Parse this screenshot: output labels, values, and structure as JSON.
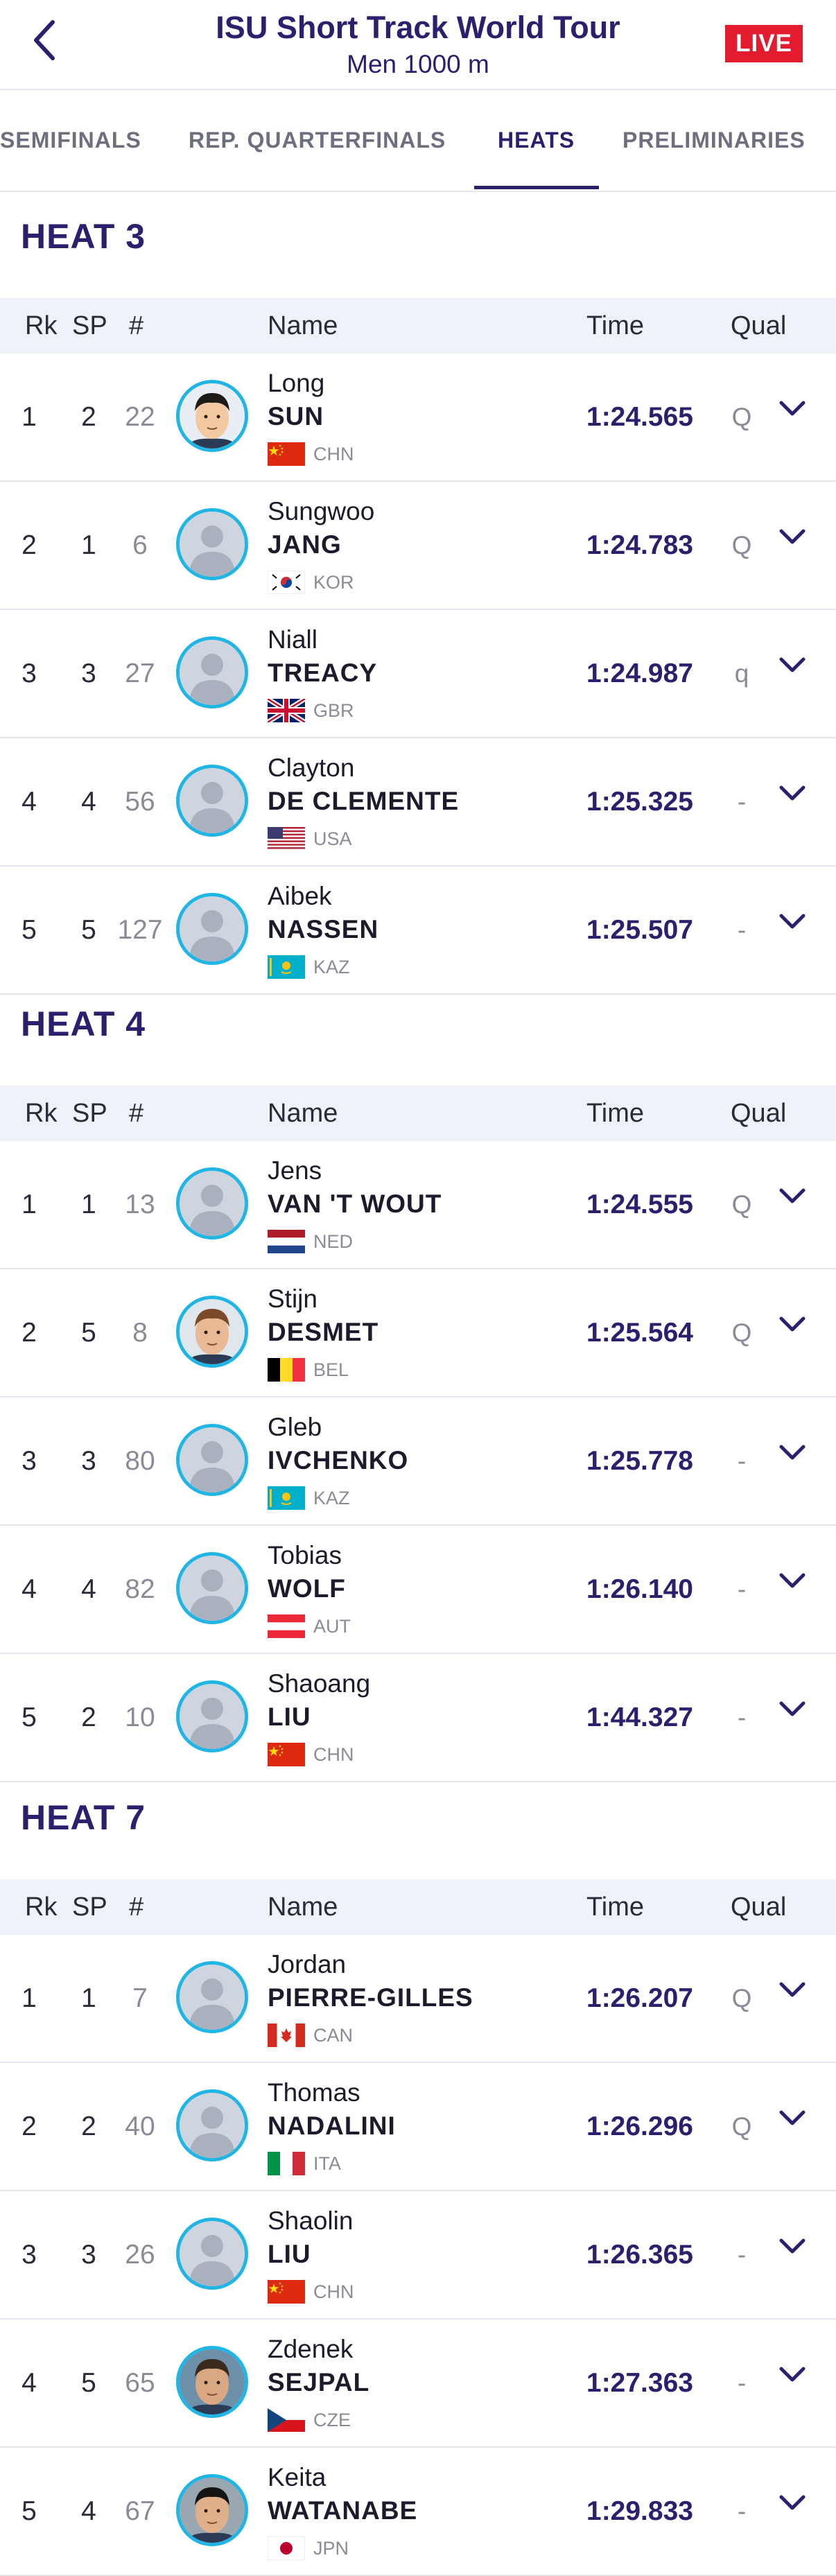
{
  "header": {
    "title": "ISU Short Track World Tour",
    "subtitle": "Men 1000 m",
    "live_label": "LIVE"
  },
  "tabs": [
    {
      "label": "SEMIFINALS",
      "active": false
    },
    {
      "label": "REP. QUARTERFINALS",
      "active": false
    },
    {
      "label": "HEATS",
      "active": true
    },
    {
      "label": "PRELIMINARIES",
      "active": false
    }
  ],
  "columns": {
    "rk": "Rk",
    "sp": "SP",
    "num": "#",
    "name": "Name",
    "time": "Time",
    "qual": "Qual"
  },
  "colors": {
    "accent": "#2d1f6e",
    "live": "#e21b2f",
    "avatar_ring": "#1fb6e6",
    "header_bg": "#eff2f8"
  },
  "heats": [
    {
      "title": "HEAT 3",
      "rows": [
        {
          "rk": "1",
          "sp": "2",
          "num": "22",
          "first": "Long",
          "last": "SUN",
          "noc": "CHN",
          "time": "1:24.565",
          "qual": "Q",
          "photo": "photo-1"
        },
        {
          "rk": "2",
          "sp": "1",
          "num": "6",
          "first": "Sungwoo",
          "last": "JANG",
          "noc": "KOR",
          "time": "1:24.783",
          "qual": "Q",
          "photo": "placeholder"
        },
        {
          "rk": "3",
          "sp": "3",
          "num": "27",
          "first": "Niall",
          "last": "TREACY",
          "noc": "GBR",
          "time": "1:24.987",
          "qual": "q",
          "photo": "placeholder"
        },
        {
          "rk": "4",
          "sp": "4",
          "num": "56",
          "first": "Clayton",
          "last": "DE CLEMENTE",
          "noc": "USA",
          "time": "1:25.325",
          "qual": "-",
          "photo": "placeholder"
        },
        {
          "rk": "5",
          "sp": "5",
          "num": "127",
          "first": "Aibek",
          "last": "NASSEN",
          "noc": "KAZ",
          "time": "1:25.507",
          "qual": "-",
          "photo": "placeholder"
        }
      ]
    },
    {
      "title": "HEAT 4",
      "rows": [
        {
          "rk": "1",
          "sp": "1",
          "num": "13",
          "first": "Jens",
          "last": "VAN 'T WOUT",
          "noc": "NED",
          "time": "1:24.555",
          "qual": "Q",
          "photo": "placeholder"
        },
        {
          "rk": "2",
          "sp": "5",
          "num": "8",
          "first": "Stijn",
          "last": "DESMET",
          "noc": "BEL",
          "time": "1:25.564",
          "qual": "Q",
          "photo": "photo-2"
        },
        {
          "rk": "3",
          "sp": "3",
          "num": "80",
          "first": "Gleb",
          "last": "IVCHENKO",
          "noc": "KAZ",
          "time": "1:25.778",
          "qual": "-",
          "photo": "placeholder"
        },
        {
          "rk": "4",
          "sp": "4",
          "num": "82",
          "first": "Tobias",
          "last": "WOLF",
          "noc": "AUT",
          "time": "1:26.140",
          "qual": "-",
          "photo": "placeholder"
        },
        {
          "rk": "5",
          "sp": "2",
          "num": "10",
          "first": "Shaoang",
          "last": "LIU",
          "noc": "CHN",
          "time": "1:44.327",
          "qual": "-",
          "photo": "placeholder"
        }
      ]
    },
    {
      "title": "HEAT 7",
      "rows": [
        {
          "rk": "1",
          "sp": "1",
          "num": "7",
          "first": "Jordan",
          "last": "PIERRE-GILLES",
          "noc": "CAN",
          "time": "1:26.207",
          "qual": "Q",
          "photo": "placeholder"
        },
        {
          "rk": "2",
          "sp": "2",
          "num": "40",
          "first": "Thomas",
          "last": "NADALINI",
          "noc": "ITA",
          "time": "1:26.296",
          "qual": "Q",
          "photo": "placeholder"
        },
        {
          "rk": "3",
          "sp": "3",
          "num": "26",
          "first": "Shaolin",
          "last": "LIU",
          "noc": "CHN",
          "time": "1:26.365",
          "qual": "-",
          "photo": "placeholder"
        },
        {
          "rk": "4",
          "sp": "5",
          "num": "65",
          "first": "Zdenek",
          "last": "SEJPAL",
          "noc": "CZE",
          "time": "1:27.363",
          "qual": "-",
          "photo": "photo-3"
        },
        {
          "rk": "5",
          "sp": "4",
          "num": "67",
          "first": "Keita",
          "last": "WATANABE",
          "noc": "JPN",
          "time": "1:29.833",
          "qual": "-",
          "photo": "photo-4"
        }
      ]
    }
  ]
}
